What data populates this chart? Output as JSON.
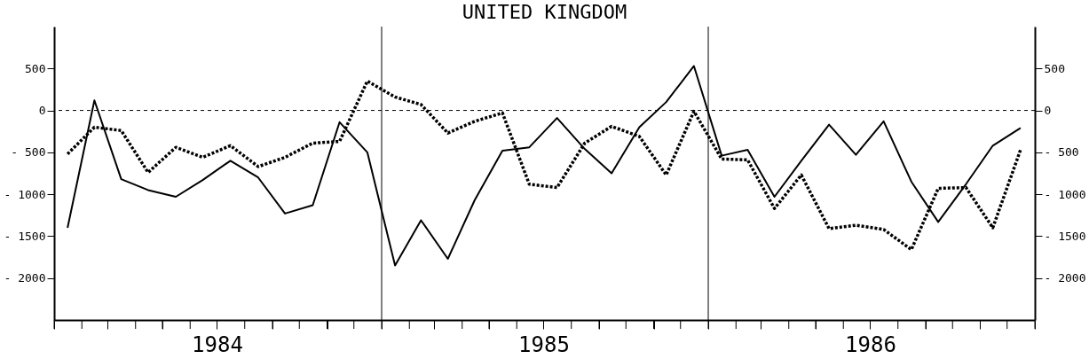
{
  "chart_data": {
    "type": "line",
    "title": "UNITED KINGDOM",
    "x": [
      "1984-01-16",
      "1984-02-15",
      "1984-03-16",
      "1984-04-15",
      "1984-05-16",
      "1984-06-15",
      "1984-07-16",
      "1984-08-16",
      "1984-09-15",
      "1984-10-16",
      "1984-11-15",
      "1984-12-16",
      "1985-01-16",
      "1985-02-14",
      "1985-03-16",
      "1985-04-15",
      "1985-05-16",
      "1985-06-15",
      "1985-07-16",
      "1985-08-16",
      "1985-09-15",
      "1985-10-16",
      "1985-11-15",
      "1985-12-16",
      "1986-01-16",
      "1986-02-14",
      "1986-03-16",
      "1986-04-15",
      "1986-05-16",
      "1986-06-15",
      "1986-07-16",
      "1986-08-16",
      "1986-09-15",
      "1986-10-16",
      "1986-11-15",
      "1986-12-16"
    ],
    "series": [
      {
        "color": "#000000",
        "line_style": "solid",
        "values": [
          -1400,
          120,
          -820,
          -950,
          -1030,
          -830,
          -600,
          -800,
          -1230,
          -1130,
          -140,
          -500,
          -1850,
          -1310,
          -1770,
          -1070,
          -480,
          -440,
          -90,
          -460,
          -750,
          -200,
          100,
          530,
          -540,
          -470,
          -1030,
          -600,
          -170,
          -530,
          -130,
          -850,
          -1330,
          -880,
          -420,
          -210
        ]
      },
      {
        "color": "#000000",
        "line_style": "dotted",
        "values": [
          -520,
          -200,
          -240,
          -740,
          -440,
          -560,
          -420,
          -670,
          -560,
          -390,
          -370,
          350,
          160,
          70,
          -270,
          -130,
          -30,
          -880,
          -920,
          -390,
          -190,
          -310,
          -770,
          -10,
          -580,
          -590,
          -1170,
          -770,
          -1410,
          -1370,
          -1420,
          -1660,
          -930,
          -920,
          -1400,
          -470
        ]
      }
    ],
    "xlim": [
      "1984-01",
      "1987-01"
    ],
    "xticks": [
      {
        "value": "1984-01",
        "label": null
      },
      {
        "value": "1984-02",
        "label": null
      },
      {
        "value": "1984-03",
        "label": null
      },
      {
        "value": "1984-04",
        "label": null
      },
      {
        "value": "1984-05",
        "label": null
      },
      {
        "value": "1984-06",
        "label": null
      },
      {
        "value": "1984-07",
        "label": "1984"
      },
      {
        "value": "1984-08",
        "label": null
      },
      {
        "value": "1984-09",
        "label": null
      },
      {
        "value": "1984-10",
        "label": null
      },
      {
        "value": "1984-11",
        "label": null
      },
      {
        "value": "1984-12",
        "label": null
      },
      {
        "value": "1985-01",
        "label": null
      },
      {
        "value": "1985-02",
        "label": null
      },
      {
        "value": "1985-03",
        "label": null
      },
      {
        "value": "1985-04",
        "label": null
      },
      {
        "value": "1985-05",
        "label": null
      },
      {
        "value": "1985-06",
        "label": null
      },
      {
        "value": "1985-07",
        "label": "1985"
      },
      {
        "value": "1985-08",
        "label": null
      },
      {
        "value": "1985-09",
        "label": null
      },
      {
        "value": "1985-10",
        "label": null
      },
      {
        "value": "1985-11",
        "label": null
      },
      {
        "value": "1985-12",
        "label": null
      },
      {
        "value": "1986-01",
        "label": null
      },
      {
        "value": "1986-02",
        "label": null
      },
      {
        "value": "1986-03",
        "label": null
      },
      {
        "value": "1986-04",
        "label": null
      },
      {
        "value": "1986-05",
        "label": null
      },
      {
        "value": "1986-06",
        "label": null
      },
      {
        "value": "1986-07",
        "label": "1986"
      },
      {
        "value": "1986-08",
        "label": null
      },
      {
        "value": "1986-09",
        "label": null
      },
      {
        "value": "1986-10",
        "label": null
      },
      {
        "value": "1986-11",
        "label": null
      },
      {
        "value": "1986-12",
        "label": null
      },
      {
        "value": "1987-01",
        "label": null
      }
    ],
    "ylim": [
      -2500,
      1000
    ],
    "yticks": [
      {
        "value": 500,
        "label": "500"
      },
      {
        "value": 0,
        "label": "0"
      },
      {
        "value": -500,
        "label": "- 500"
      },
      {
        "value": -1000,
        "label": "- 1000"
      },
      {
        "value": -1500,
        "label": "- 1500"
      },
      {
        "value": -2000,
        "label": "- 2000"
      }
    ],
    "y2lim": [
      -2500,
      1000
    ],
    "y2ticks": [
      {
        "value": 500,
        "label": "500"
      },
      {
        "value": 0,
        "label": "0"
      },
      {
        "value": -500,
        "label": "- 500"
      },
      {
        "value": -1000,
        "label": "- 1000"
      },
      {
        "value": -1500,
        "label": "- 1500"
      },
      {
        "value": -2000,
        "label": "- 2000"
      }
    ],
    "ref_lines": [
      {
        "axis": "y",
        "value": 0,
        "line_style": "dashed"
      },
      {
        "axis": "x",
        "value": "1985-01",
        "line_style": "solid"
      },
      {
        "axis": "x",
        "value": "1986-01",
        "line_style": "solid"
      }
    ],
    "grid": false
  }
}
